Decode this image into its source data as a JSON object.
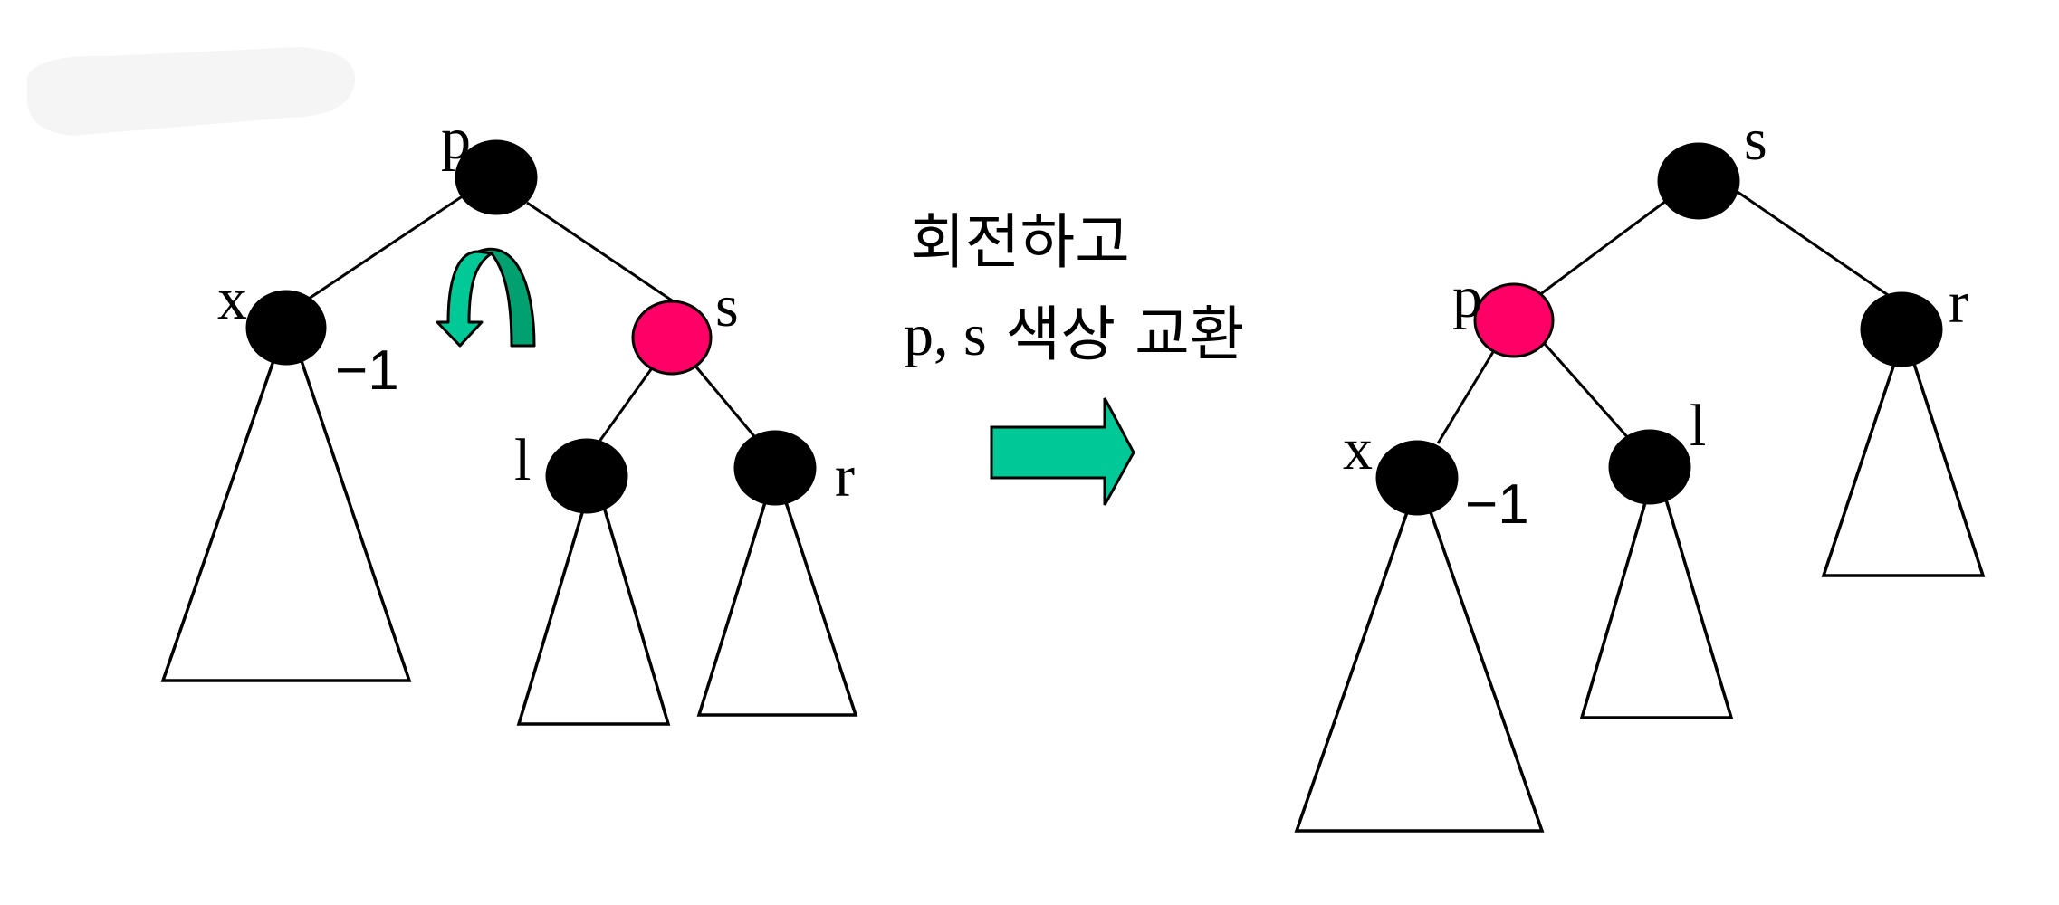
{
  "colors": {
    "black_node": "#000000",
    "red_node": "#ff0066",
    "arrow": "#00c896",
    "rotation_arrow_light": "#00c896",
    "rotation_arrow_dark": "#00a070",
    "smudge": "#f2f2f2"
  },
  "caption": {
    "line1": "회전하고",
    "line2_latin": "p, s",
    "line2_korean": " 색상 교환"
  },
  "before": {
    "nodes": {
      "p": {
        "label": "p",
        "color": "black"
      },
      "x": {
        "label": "x",
        "color": "black",
        "balance": "−1"
      },
      "s": {
        "label": "s",
        "color": "red"
      },
      "l": {
        "label": "l",
        "color": "black"
      },
      "r": {
        "label": "r",
        "color": "black"
      }
    },
    "rotation_icon": "rotate-left-icon"
  },
  "after": {
    "nodes": {
      "s": {
        "label": "s",
        "color": "black"
      },
      "p": {
        "label": "p",
        "color": "red"
      },
      "r": {
        "label": "r",
        "color": "black"
      },
      "x": {
        "label": "x",
        "color": "black",
        "balance": "−1"
      },
      "l": {
        "label": "l",
        "color": "black"
      }
    }
  },
  "transform_arrow_icon": "right-arrow-icon"
}
